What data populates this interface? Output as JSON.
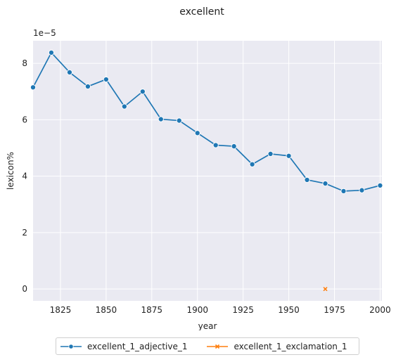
{
  "chart_data": {
    "type": "line",
    "title": "excellent",
    "xlabel": "year",
    "ylabel": "lexicon%",
    "y_offset_label": "1e−5",
    "xlim": [
      1810,
      2001
    ],
    "ylim": [
      -0.42,
      8.8
    ],
    "x_ticks": [
      1825,
      1850,
      1875,
      1900,
      1925,
      1950,
      1975,
      2000
    ],
    "y_ticks": [
      0,
      2,
      4,
      6,
      8
    ],
    "grid": true,
    "legend_position": "bottom-center",
    "background_color": "#eaeaf2",
    "series": [
      {
        "name": "excellent_1_adjective_1",
        "marker": "circle",
        "color": "#1f77b4",
        "x": [
          1810,
          1820,
          1830,
          1840,
          1850,
          1860,
          1870,
          1880,
          1890,
          1900,
          1910,
          1920,
          1930,
          1940,
          1950,
          1960,
          1970,
          1980,
          1990,
          2000
        ],
        "y": [
          7.15,
          8.38,
          7.68,
          7.18,
          7.43,
          6.47,
          7.0,
          6.02,
          5.97,
          5.53,
          5.1,
          5.06,
          4.42,
          4.79,
          4.72,
          3.87,
          3.74,
          3.47,
          3.5,
          3.67
        ]
      },
      {
        "name": "excellent_1_exclamation_1",
        "marker": "x",
        "color": "#ff7f0e",
        "x": [
          1970
        ],
        "y": [
          0.0
        ]
      }
    ]
  }
}
